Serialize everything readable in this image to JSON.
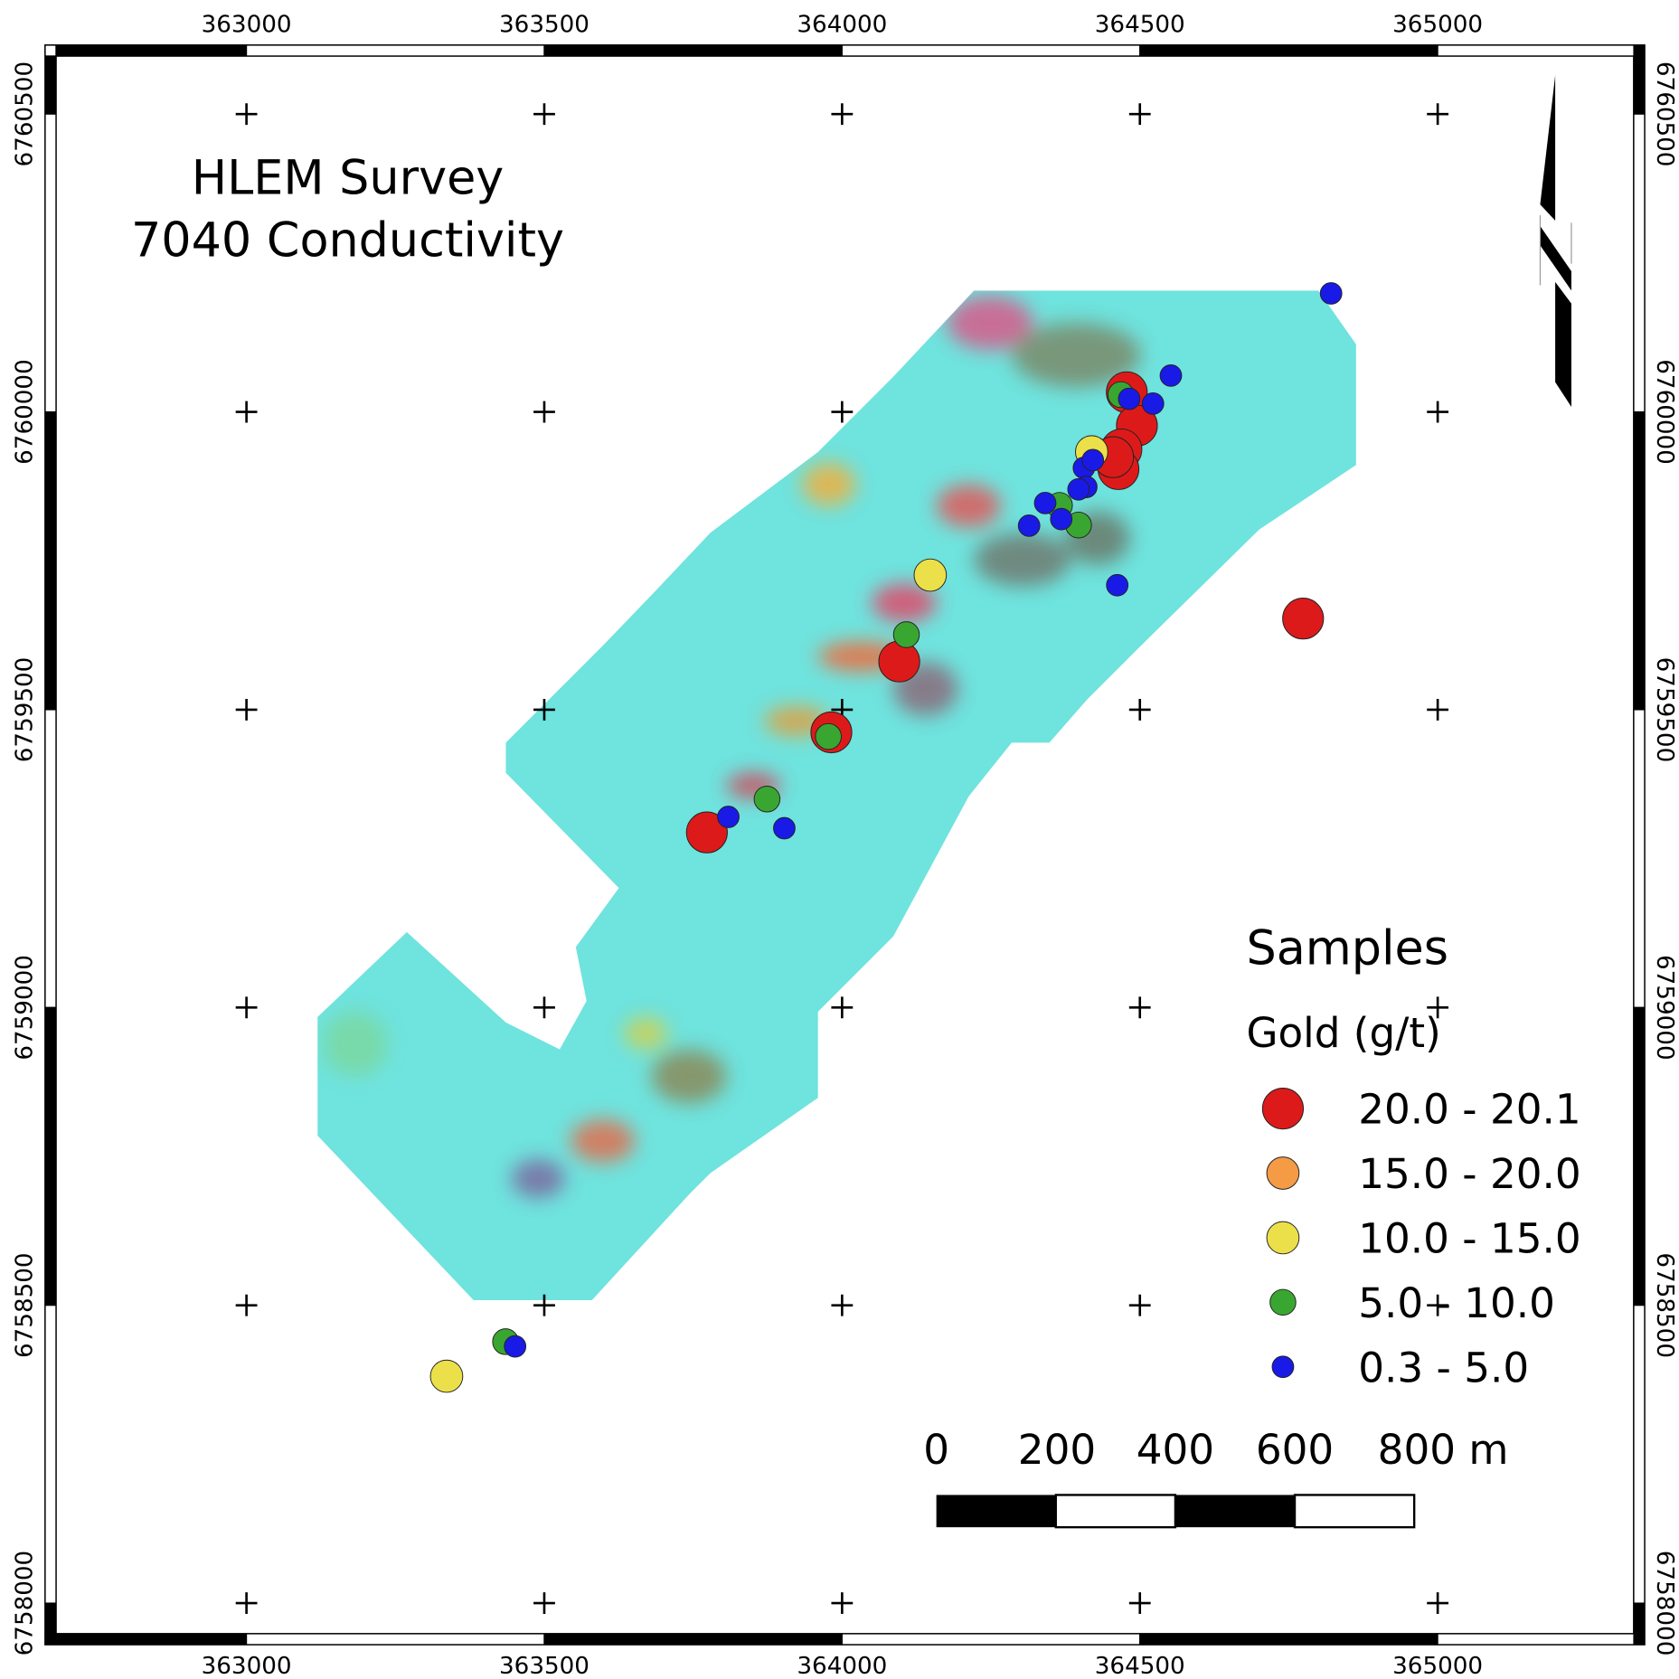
{
  "title": {
    "line1": "HLEM Survey",
    "line2": "7040 Conductivity"
  },
  "x_ticks": [
    "363000",
    "363500",
    "364000",
    "364500",
    "365000"
  ],
  "y_ticks": [
    "6760500",
    "6760000",
    "6759500",
    "6759000",
    "6758500",
    "6758000"
  ],
  "grid": {
    "easting": [
      363000,
      363500,
      364000,
      364500,
      365000
    ],
    "northing": [
      6760500,
      6760000,
      6759500,
      6759000,
      6758500,
      6758000
    ]
  },
  "legend": {
    "heading": "Samples",
    "subheading": "Gold (g/t)",
    "classes": [
      {
        "label": "20.0 - 20.1",
        "color": "#dd1a1a"
      },
      {
        "label": "15.0 - 20.0",
        "color": "#f59a45"
      },
      {
        "label": "10.0 - 15.0",
        "color": "#ece04a"
      },
      {
        "label": "5.0 - 10.0",
        "color": "#3aa632"
      },
      {
        "label": "0.3 - 5.0",
        "color": "#1a1ae6"
      }
    ]
  },
  "scalebar": {
    "labels": [
      "0",
      "200",
      "400",
      "600",
      "800 m"
    ]
  },
  "samples": [
    {
      "e": 364774,
      "n": 6759653,
      "c": 0
    },
    {
      "e": 364096,
      "n": 6759581,
      "c": 0
    },
    {
      "e": 363982,
      "n": 6759462,
      "c": 0
    },
    {
      "e": 363773,
      "n": 6759294,
      "c": 0
    },
    {
      "e": 364478,
      "n": 6760033,
      "c": 0
    },
    {
      "e": 364495,
      "n": 6759977,
      "c": 0
    },
    {
      "e": 364469,
      "n": 6759937,
      "c": 0
    },
    {
      "e": 364464,
      "n": 6759904,
      "c": 0
    },
    {
      "e": 364455,
      "n": 6759924,
      "c": 0
    },
    {
      "e": 364148,
      "n": 6759726,
      "c": 2
    },
    {
      "e": 363336,
      "n": 6758381,
      "c": 2
    },
    {
      "e": 364419,
      "n": 6759933,
      "c": 2
    },
    {
      "e": 364108,
      "n": 6759626,
      "c": 3
    },
    {
      "e": 363977,
      "n": 6759455,
      "c": 3
    },
    {
      "e": 363874,
      "n": 6759350,
      "c": 3
    },
    {
      "e": 364397,
      "n": 6759810,
      "c": 3
    },
    {
      "e": 364365,
      "n": 6759843,
      "c": 3
    },
    {
      "e": 364468,
      "n": 6760029,
      "c": 3
    },
    {
      "e": 364821,
      "n": 6760199,
      "c": 4
    },
    {
      "e": 364552,
      "n": 6760061,
      "c": 4
    },
    {
      "e": 364482,
      "n": 6760022,
      "c": 4
    },
    {
      "e": 364522,
      "n": 6760014,
      "c": 4
    },
    {
      "e": 364406,
      "n": 6759906,
      "c": 4
    },
    {
      "e": 364421,
      "n": 6759919,
      "c": 4
    },
    {
      "e": 364410,
      "n": 6759874,
      "c": 4
    },
    {
      "e": 364397,
      "n": 6759870,
      "c": 4
    },
    {
      "e": 364341,
      "n": 6759847,
      "c": 4
    },
    {
      "e": 364314,
      "n": 6759809,
      "c": 4
    },
    {
      "e": 364368,
      "n": 6759820,
      "c": 4
    },
    {
      "e": 364462,
      "n": 6759709,
      "c": 4
    },
    {
      "e": 363809,
      "n": 6759320,
      "c": 4
    },
    {
      "e": 363903,
      "n": 6759301,
      "c": 4
    },
    {
      "e": 363451,
      "n": 6758431,
      "c": 4
    },
    {
      "e": 363435,
      "n": 6758439,
      "c": 3
    }
  ]
}
